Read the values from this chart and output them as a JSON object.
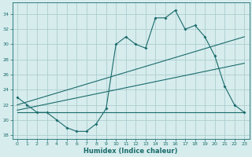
{
  "title": "",
  "xlabel": "Humidex (Indice chaleur)",
  "xlim": [
    -0.5,
    23.5
  ],
  "ylim": [
    17.5,
    35.5
  ],
  "yticks": [
    18,
    20,
    22,
    24,
    26,
    28,
    30,
    32,
    34
  ],
  "xticks": [
    0,
    1,
    2,
    3,
    4,
    5,
    6,
    7,
    8,
    9,
    10,
    11,
    12,
    13,
    14,
    15,
    16,
    17,
    18,
    19,
    20,
    21,
    22,
    23
  ],
  "background_color": "#d6eced",
  "grid_color": "#aecdd0",
  "line_color": "#1a6b6b",
  "series1_x": [
    0,
    1,
    2,
    3,
    4,
    5,
    6,
    7,
    8,
    9,
    10,
    11,
    12,
    13,
    14,
    15,
    16,
    17,
    18,
    19,
    20,
    21,
    22,
    23
  ],
  "series1_y": [
    23.0,
    22.0,
    21.0,
    21.0,
    20.0,
    19.0,
    18.5,
    18.5,
    19.5,
    21.5,
    30.0,
    31.0,
    30.0,
    29.5,
    33.5,
    33.5,
    34.5,
    32.0,
    32.5,
    31.0,
    28.5,
    24.5,
    22.0,
    21.0
  ],
  "series2_x": [
    0,
    23
  ],
  "series2_y": [
    21.0,
    21.0
  ],
  "series3_x": [
    0,
    23
  ],
  "series3_y": [
    22.0,
    31.0
  ],
  "series4_x": [
    0,
    23
  ],
  "series4_y": [
    21.3,
    27.5
  ],
  "xlabel_fontsize": 6,
  "tick_fontsize": 4.5,
  "linewidth": 0.8,
  "marker_size": 2.0
}
